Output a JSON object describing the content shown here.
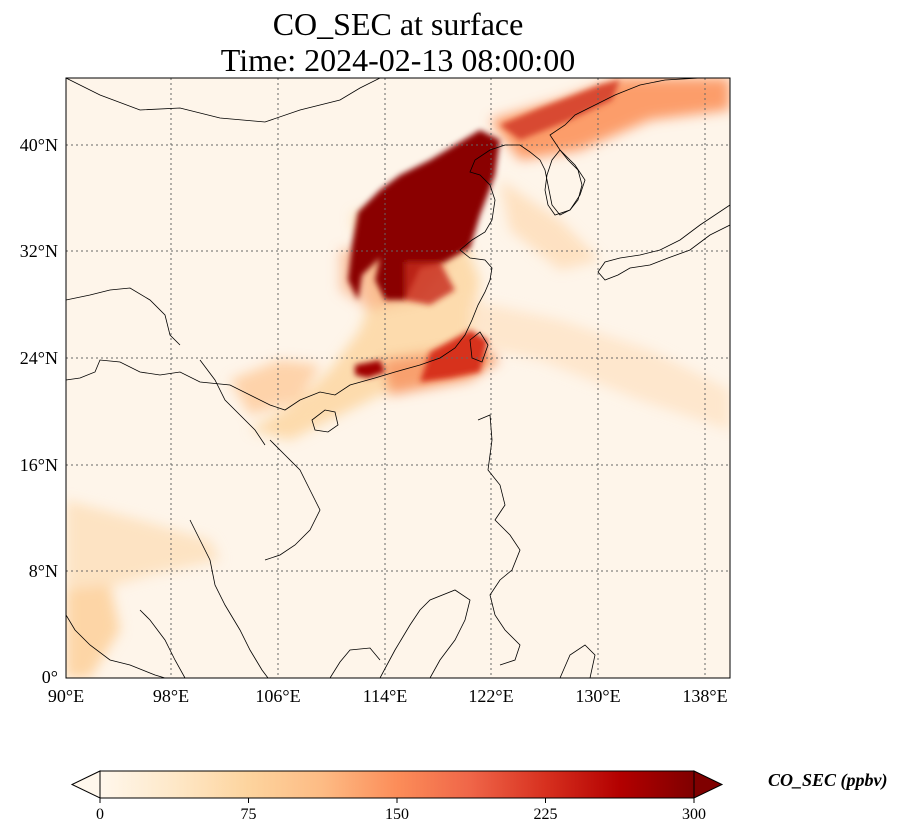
{
  "title_line1": "CO_SEC at surface",
  "title_line2": "Time: 2024-02-13 08:00:00",
  "map": {
    "lon_range": [
      90,
      140
    ],
    "lat_range": [
      0,
      45
    ],
    "lat_ticks": [
      "0°",
      "8°N",
      "16°N",
      "24°N",
      "32°N",
      "40°N"
    ],
    "lon_ticks": [
      "90°E",
      "98°E",
      "106°E",
      "114°E",
      "122°E",
      "130°E",
      "138°E"
    ],
    "gridlines": true
  },
  "colorbar": {
    "label": "CO_SEC (ppbv)",
    "range": [
      0,
      300
    ],
    "ticks": [
      "0",
      "75",
      "150",
      "225",
      "300"
    ],
    "extend": "both",
    "colormap": "OrRd",
    "colors": [
      "#fff7ec",
      "#fee8c8",
      "#fdd49e",
      "#fdbb84",
      "#fc8d59",
      "#ef6548",
      "#d7301f",
      "#b30000",
      "#7f0000"
    ]
  }
}
